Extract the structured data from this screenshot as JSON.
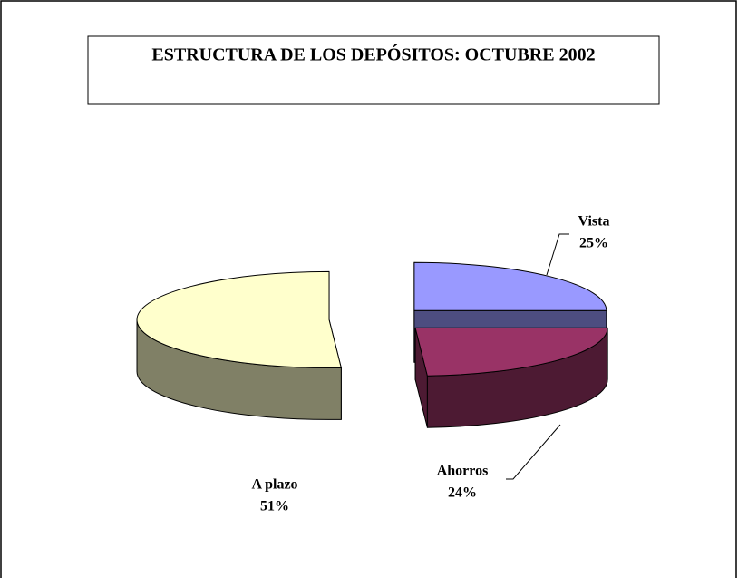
{
  "chart_data": {
    "type": "pie3d",
    "title": "ESTRUCTURA DE LOS DEPÓSITOS: OCTUBRE 2002",
    "categories": [
      "Vista",
      "Ahorros",
      "A plazo"
    ],
    "values": [
      25,
      24,
      51
    ],
    "value_labels": [
      "25%",
      "24%",
      "51%"
    ],
    "colors": [
      "#9999ff",
      "#993366",
      "#ffffcc"
    ]
  }
}
